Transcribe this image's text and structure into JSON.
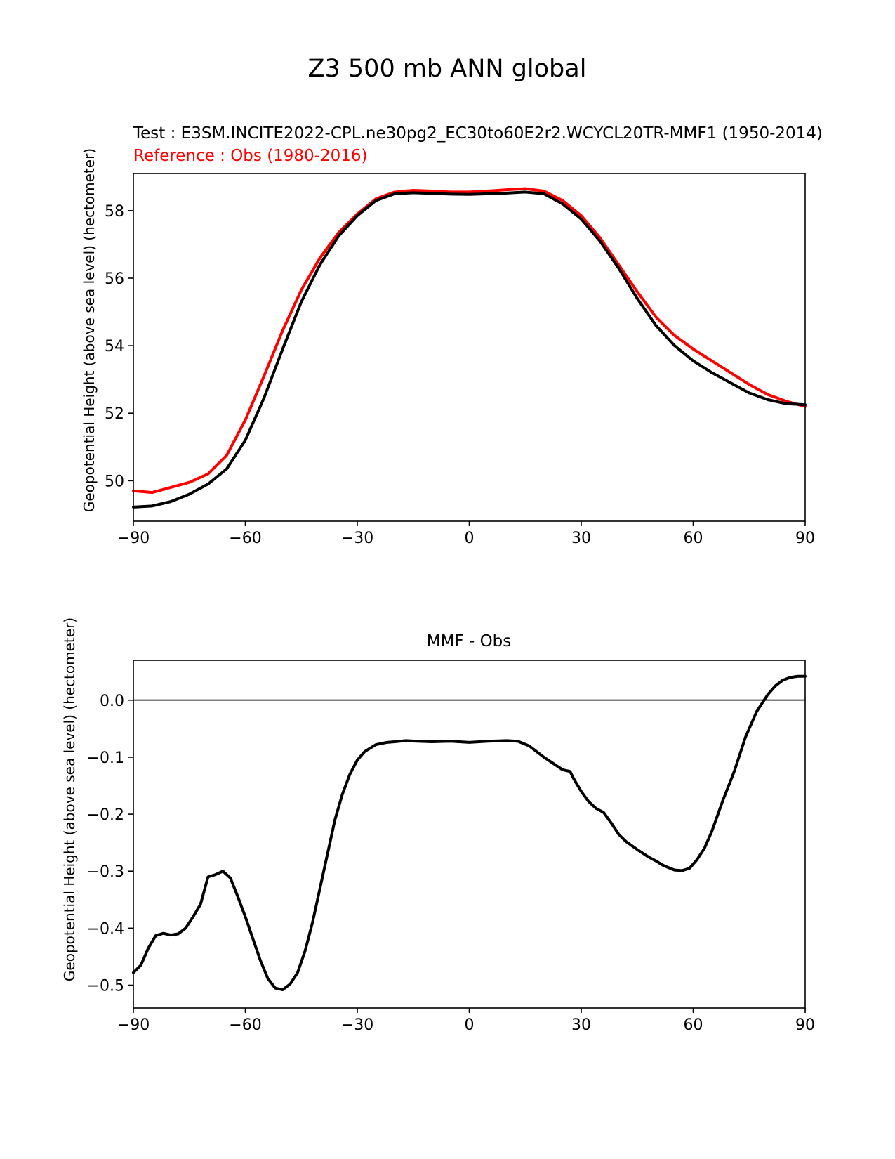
{
  "figure": {
    "suptitle": "Z3 500 mb ANN global"
  },
  "chart_data": [
    {
      "type": "line",
      "title_test": "Test : E3SM.INCITE2022-CPL.ne30pg2_EC30to60E2r2.WCYCL20TR-MMF1 (1950-2014)",
      "title_ref": "Reference : Obs (1980-2016)",
      "xlabel": "",
      "ylabel": "Geopotential Height (above sea level) (hectometer)",
      "xlim": [
        -90,
        90
      ],
      "ylim": [
        48.8,
        59.1
      ],
      "xticks": [
        -90,
        -60,
        -30,
        0,
        30,
        60,
        90
      ],
      "yticks": [
        50,
        52,
        54,
        56,
        58
      ],
      "grid": false,
      "series": [
        {
          "color": "#ff0000",
          "x": [
            -90,
            -85,
            -80,
            -75,
            -70,
            -65,
            -60,
            -55,
            -50,
            -45,
            -40,
            -35,
            -30,
            -25,
            -20,
            -15,
            -10,
            -5,
            0,
            5,
            10,
            15,
            20,
            25,
            30,
            35,
            40,
            45,
            50,
            55,
            60,
            65,
            70,
            75,
            80,
            85,
            90
          ],
          "y": [
            49.7,
            49.65,
            49.8,
            49.95,
            50.2,
            50.75,
            51.8,
            53.1,
            54.45,
            55.65,
            56.6,
            57.35,
            57.9,
            58.35,
            58.55,
            58.6,
            58.58,
            58.55,
            58.55,
            58.58,
            58.62,
            58.65,
            58.58,
            58.3,
            57.85,
            57.2,
            56.4,
            55.6,
            54.85,
            54.3,
            53.9,
            53.55,
            53.2,
            52.85,
            52.55,
            52.35,
            52.2
          ]
        },
        {
          "color": "#000000",
          "x": [
            -90,
            -85,
            -80,
            -75,
            -70,
            -65,
            -60,
            -55,
            -50,
            -45,
            -40,
            -35,
            -30,
            -25,
            -20,
            -15,
            -10,
            -5,
            0,
            5,
            10,
            15,
            20,
            25,
            30,
            35,
            40,
            45,
            50,
            55,
            60,
            65,
            70,
            75,
            80,
            85,
            90
          ],
          "y": [
            49.22,
            49.25,
            49.38,
            49.6,
            49.9,
            50.35,
            51.2,
            52.45,
            53.9,
            55.3,
            56.4,
            57.25,
            57.85,
            58.3,
            58.5,
            58.53,
            58.51,
            58.49,
            58.48,
            58.5,
            58.52,
            58.55,
            58.5,
            58.2,
            57.75,
            57.1,
            56.3,
            55.4,
            54.6,
            54.0,
            53.55,
            53.2,
            52.9,
            52.6,
            52.4,
            52.28,
            52.25
          ]
        }
      ]
    },
    {
      "type": "line",
      "title": "MMF - Obs",
      "xlabel": "",
      "ylabel": "Geopotential Height (above sea level) (hectometer)",
      "xlim": [
        -90,
        90
      ],
      "ylim": [
        -0.54,
        0.07
      ],
      "xticks": [
        -90,
        -60,
        -30,
        0,
        30,
        60,
        90
      ],
      "yticks": [
        0.0,
        -0.1,
        -0.2,
        -0.3,
        -0.4,
        -0.5
      ],
      "ytick_labels": [
        "0.0",
        "−0.1",
        "−0.2",
        "−0.3",
        "−0.4",
        "−0.5"
      ],
      "zero_line": {
        "y": 0.0,
        "color": "#808080"
      },
      "grid": false,
      "series": [
        {
          "color": "#000000",
          "x": [
            -90,
            -88,
            -86,
            -84,
            -82,
            -80,
            -78,
            -76,
            -74,
            -72,
            -70,
            -68,
            -66,
            -64,
            -62,
            -60,
            -58,
            -56,
            -54,
            -52,
            -50,
            -48,
            -46,
            -44,
            -42,
            -40,
            -38,
            -36,
            -34,
            -32,
            -30,
            -28,
            -25,
            -22,
            -20,
            -17,
            -14,
            -10,
            -5,
            0,
            5,
            10,
            13,
            16,
            20,
            25,
            27,
            28,
            30,
            32,
            34,
            36,
            38,
            40,
            42,
            45,
            48,
            50,
            52,
            55,
            57,
            59,
            61,
            63,
            65,
            68,
            71,
            74,
            77,
            80,
            82,
            84,
            86,
            88,
            90
          ],
          "y": [
            -0.478,
            -0.465,
            -0.435,
            -0.413,
            -0.409,
            -0.412,
            -0.41,
            -0.4,
            -0.38,
            -0.358,
            -0.31,
            -0.306,
            -0.3,
            -0.312,
            -0.345,
            -0.38,
            -0.418,
            -0.456,
            -0.488,
            -0.505,
            -0.508,
            -0.498,
            -0.478,
            -0.44,
            -0.39,
            -0.33,
            -0.27,
            -0.21,
            -0.165,
            -0.13,
            -0.105,
            -0.09,
            -0.078,
            -0.074,
            -0.073,
            -0.071,
            -0.072,
            -0.073,
            -0.072,
            -0.074,
            -0.072,
            -0.071,
            -0.072,
            -0.08,
            -0.1,
            -0.122,
            -0.125,
            -0.138,
            -0.16,
            -0.178,
            -0.19,
            -0.197,
            -0.215,
            -0.235,
            -0.248,
            -0.262,
            -0.275,
            -0.282,
            -0.29,
            -0.298,
            -0.299,
            -0.295,
            -0.28,
            -0.26,
            -0.23,
            -0.175,
            -0.125,
            -0.065,
            -0.02,
            0.01,
            0.025,
            0.035,
            0.04,
            0.042,
            0.042
          ]
        }
      ]
    }
  ]
}
